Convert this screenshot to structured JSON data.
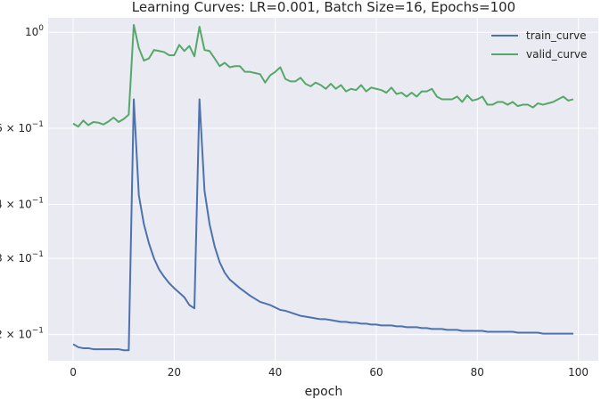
{
  "chart_data": {
    "type": "line",
    "title": "Learning Curves: LR=0.001, Batch Size=16, Epochs=100",
    "xlabel": "epoch",
    "ylabel": "",
    "xlim": [
      -4.95,
      103.95
    ],
    "ylim": [
      0.174,
      1.08
    ],
    "yscale": "log",
    "grid": true,
    "legend": "top-right",
    "xticks": [
      0,
      20,
      40,
      60,
      80,
      100
    ],
    "xtick_labels": [
      "0",
      "20",
      "40",
      "60",
      "80",
      "100"
    ],
    "yticks": [
      1.0,
      0.6,
      0.4,
      0.3,
      0.2
    ],
    "ytick_labels": [
      {
        "mant": "10",
        "exp": "0"
      },
      {
        "mant": "6 × 10",
        "exp": "−1"
      },
      {
        "mant": "4 × 10",
        "exp": "−1"
      },
      {
        "mant": "3 × 10",
        "exp": "−1"
      },
      {
        "mant": "2 × 10",
        "exp": "−1"
      }
    ],
    "colors": {
      "train_curve": "#4c72b0",
      "valid_curve": "#55a868",
      "background": "#eaeaf2",
      "grid": "#ffffff"
    },
    "series": [
      {
        "name": "train_curve",
        "x": [
          0,
          1,
          2,
          3,
          4,
          5,
          6,
          7,
          8,
          9,
          10,
          11,
          12,
          13,
          14,
          15,
          16,
          17,
          18,
          19,
          20,
          21,
          22,
          23,
          24,
          25,
          26,
          27,
          28,
          29,
          30,
          31,
          32,
          33,
          34,
          35,
          36,
          37,
          38,
          39,
          40,
          41,
          42,
          43,
          44,
          45,
          46,
          47,
          48,
          49,
          50,
          51,
          52,
          53,
          54,
          55,
          56,
          57,
          58,
          59,
          60,
          61,
          62,
          63,
          64,
          65,
          66,
          67,
          68,
          69,
          70,
          71,
          72,
          73,
          74,
          75,
          76,
          77,
          78,
          79,
          80,
          81,
          82,
          83,
          84,
          85,
          86,
          87,
          88,
          89,
          90,
          91,
          92,
          93,
          94,
          95,
          96,
          97,
          98,
          99
        ],
        "values": [
          0.19,
          0.187,
          0.186,
          0.186,
          0.185,
          0.185,
          0.185,
          0.185,
          0.185,
          0.185,
          0.184,
          0.184,
          0.7,
          0.42,
          0.36,
          0.325,
          0.3,
          0.283,
          0.272,
          0.263,
          0.256,
          0.25,
          0.244,
          0.234,
          0.23,
          0.7,
          0.43,
          0.36,
          0.32,
          0.294,
          0.278,
          0.268,
          0.262,
          0.256,
          0.251,
          0.246,
          0.242,
          0.238,
          0.236,
          0.234,
          0.231,
          0.228,
          0.227,
          0.225,
          0.223,
          0.221,
          0.22,
          0.219,
          0.218,
          0.217,
          0.217,
          0.216,
          0.215,
          0.214,
          0.214,
          0.213,
          0.213,
          0.212,
          0.212,
          0.211,
          0.211,
          0.21,
          0.21,
          0.21,
          0.209,
          0.209,
          0.208,
          0.208,
          0.208,
          0.207,
          0.207,
          0.206,
          0.206,
          0.206,
          0.205,
          0.205,
          0.205,
          0.204,
          0.204,
          0.204,
          0.204,
          0.204,
          0.203,
          0.203,
          0.203,
          0.203,
          0.203,
          0.203,
          0.202,
          0.202,
          0.202,
          0.202,
          0.202,
          0.201,
          0.201,
          0.201,
          0.201,
          0.201,
          0.201,
          0.201
        ]
      },
      {
        "name": "valid_curve",
        "x": [
          0,
          1,
          2,
          3,
          4,
          5,
          6,
          7,
          8,
          9,
          10,
          11,
          12,
          13,
          14,
          15,
          16,
          17,
          18,
          19,
          20,
          21,
          22,
          23,
          24,
          25,
          26,
          27,
          28,
          29,
          30,
          31,
          32,
          33,
          34,
          35,
          36,
          37,
          38,
          39,
          40,
          41,
          42,
          43,
          44,
          45,
          46,
          47,
          48,
          49,
          50,
          51,
          52,
          53,
          54,
          55,
          56,
          57,
          58,
          59,
          60,
          61,
          62,
          63,
          64,
          65,
          66,
          67,
          68,
          69,
          70,
          71,
          72,
          73,
          74,
          75,
          76,
          77,
          78,
          79,
          80,
          81,
          82,
          83,
          84,
          85,
          86,
          87,
          88,
          89,
          90,
          91,
          92,
          93,
          94,
          95,
          96,
          97,
          98,
          99
        ],
        "values": [
          0.615,
          0.605,
          0.625,
          0.61,
          0.62,
          0.618,
          0.612,
          0.622,
          0.635,
          0.62,
          0.63,
          0.645,
          1.04,
          0.92,
          0.86,
          0.87,
          0.91,
          0.905,
          0.9,
          0.885,
          0.885,
          0.935,
          0.905,
          0.93,
          0.88,
          1.03,
          0.91,
          0.905,
          0.87,
          0.835,
          0.85,
          0.83,
          0.835,
          0.835,
          0.81,
          0.81,
          0.805,
          0.8,
          0.765,
          0.795,
          0.81,
          0.83,
          0.78,
          0.77,
          0.77,
          0.785,
          0.76,
          0.75,
          0.765,
          0.755,
          0.74,
          0.76,
          0.74,
          0.755,
          0.73,
          0.74,
          0.735,
          0.755,
          0.73,
          0.745,
          0.74,
          0.735,
          0.725,
          0.745,
          0.72,
          0.725,
          0.71,
          0.725,
          0.71,
          0.73,
          0.73,
          0.74,
          0.71,
          0.7,
          0.7,
          0.7,
          0.71,
          0.69,
          0.715,
          0.695,
          0.7,
          0.71,
          0.68,
          0.68,
          0.69,
          0.69,
          0.68,
          0.69,
          0.675,
          0.68,
          0.68,
          0.67,
          0.685,
          0.68,
          0.685,
          0.69,
          0.7,
          0.71,
          0.695,
          0.7
        ]
      }
    ]
  }
}
